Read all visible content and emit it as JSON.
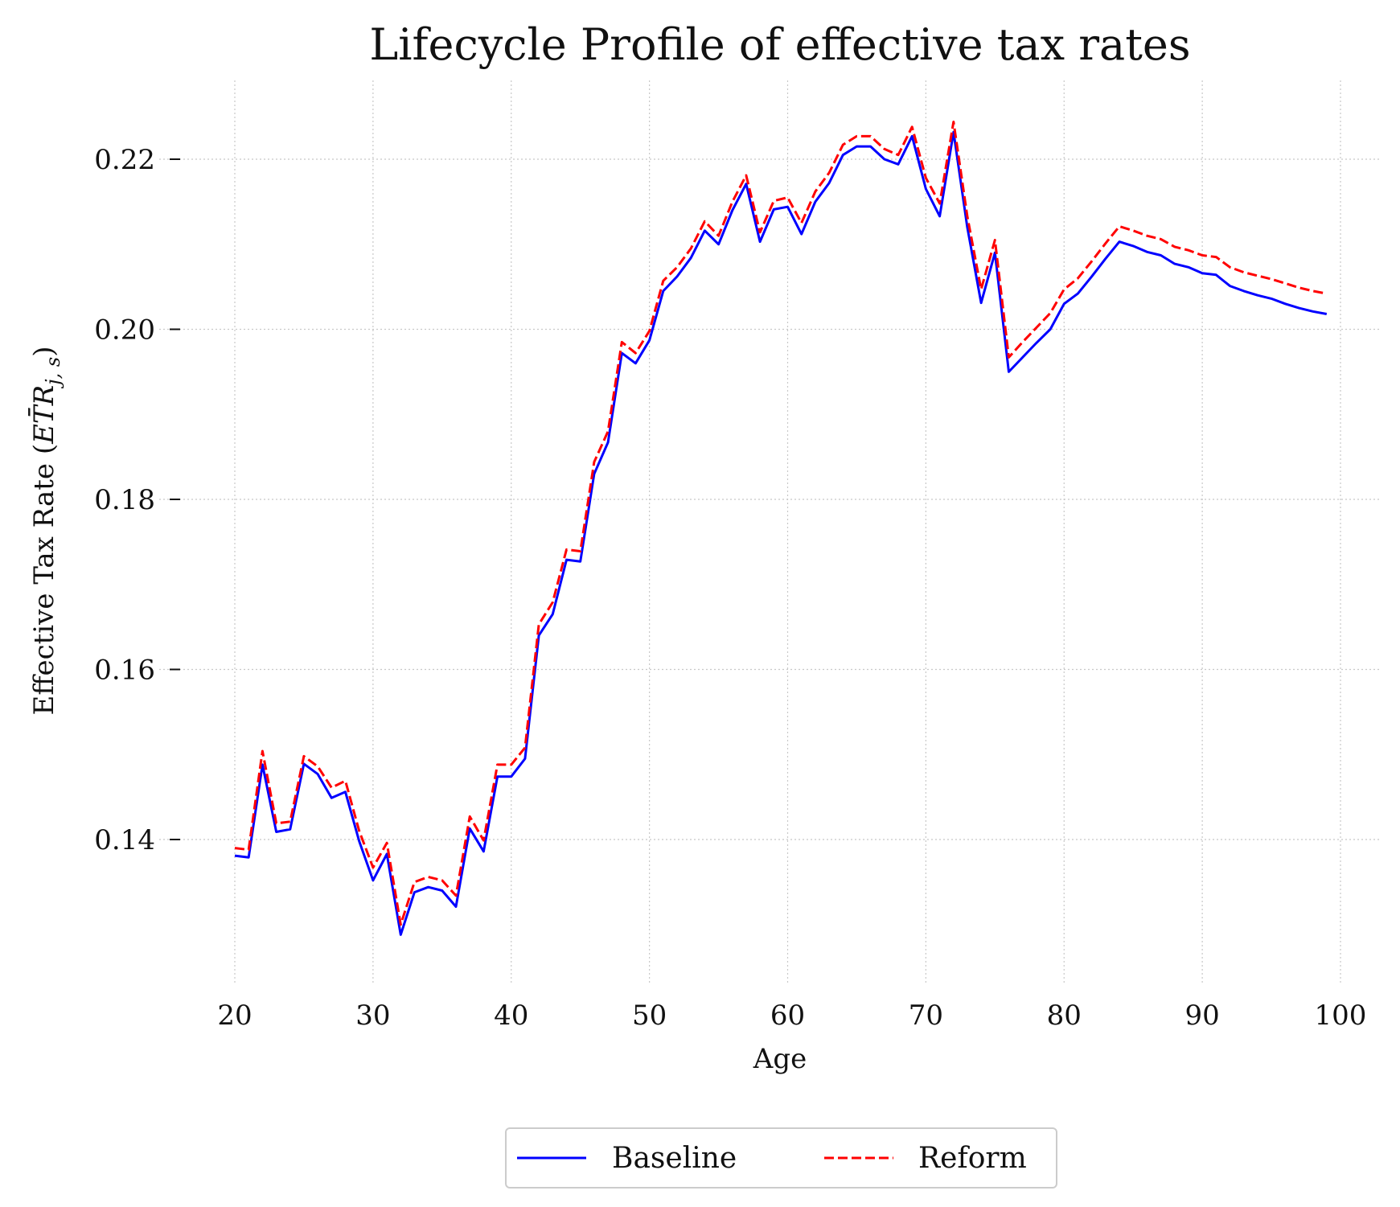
{
  "chart_data": {
    "type": "line",
    "title": "Lifecycle Profile of effective tax rates",
    "xlabel": "Age",
    "ylabel_prefix": "Effective Tax Rate (",
    "ylabel_math": "ET̄R",
    "ylabel_sub": "j, s",
    "ylabel_suffix": ")",
    "xlim": [
      20,
      100
    ],
    "ylim": [
      0.125,
      0.229
    ],
    "xticks": [
      20,
      30,
      40,
      50,
      60,
      70,
      80,
      90,
      100
    ],
    "xtick_labels": [
      "20",
      "30",
      "40",
      "50",
      "60",
      "70",
      "80",
      "90",
      "100"
    ],
    "yticks": [
      0.14,
      0.16,
      0.18,
      0.2,
      0.22
    ],
    "ytick_labels": [
      "0.14",
      "0.16",
      "0.18",
      "0.20",
      "0.22"
    ],
    "grid": true,
    "legend_position": "bottom-center",
    "x": [
      20,
      21,
      22,
      23,
      24,
      25,
      26,
      27,
      28,
      29,
      30,
      31,
      32,
      33,
      34,
      35,
      36,
      37,
      38,
      39,
      40,
      41,
      42,
      43,
      44,
      45,
      46,
      47,
      48,
      49,
      50,
      51,
      52,
      53,
      54,
      55,
      56,
      57,
      58,
      59,
      60,
      61,
      62,
      63,
      64,
      65,
      66,
      67,
      68,
      69,
      70,
      71,
      72,
      73,
      74,
      75,
      76,
      77,
      78,
      79,
      80,
      81,
      82,
      83,
      84,
      85,
      86,
      87,
      88,
      89,
      90,
      91,
      92,
      93,
      94,
      95,
      96,
      97,
      98,
      99
    ],
    "series": [
      {
        "name": "Baseline",
        "color": "#0000ff",
        "style": "solid",
        "values": [
          0.1381,
          0.1379,
          0.1488,
          0.1409,
          0.1412,
          0.1489,
          0.1477,
          0.1449,
          0.1456,
          0.1398,
          0.1352,
          0.1383,
          0.1288,
          0.1338,
          0.1344,
          0.134,
          0.1321,
          0.1413,
          0.1386,
          0.1474,
          0.1474,
          0.1495,
          0.164,
          0.1665,
          0.1729,
          0.1727,
          0.183,
          0.1867,
          0.1972,
          0.196,
          0.1987,
          0.2045,
          0.2062,
          0.2084,
          0.2116,
          0.21,
          0.214,
          0.2171,
          0.2103,
          0.2141,
          0.2144,
          0.2112,
          0.215,
          0.2172,
          0.2205,
          0.2215,
          0.2215,
          0.22,
          0.2194,
          0.2227,
          0.2165,
          0.2133,
          0.2232,
          0.212,
          0.2031,
          0.209,
          0.195,
          0.1967,
          0.1984,
          0.2,
          0.203,
          0.2042,
          0.2062,
          0.2083,
          0.2103,
          0.2098,
          0.2091,
          0.2087,
          0.2077,
          0.2073,
          0.2066,
          0.2064,
          0.2051,
          0.2045,
          0.204,
          0.2036,
          0.203,
          0.2025,
          0.2021,
          0.2018
        ]
      },
      {
        "name": "Reform",
        "color": "#ff0000",
        "style": "dashed",
        "values": [
          0.139,
          0.1388,
          0.1504,
          0.1419,
          0.1421,
          0.1498,
          0.1486,
          0.1461,
          0.1469,
          0.141,
          0.1367,
          0.1396,
          0.13,
          0.135,
          0.1356,
          0.1352,
          0.1334,
          0.1427,
          0.1399,
          0.1488,
          0.1488,
          0.1508,
          0.1653,
          0.1679,
          0.1741,
          0.1739,
          0.1844,
          0.188,
          0.1985,
          0.1972,
          0.1998,
          0.2057,
          0.2073,
          0.2095,
          0.2127,
          0.211,
          0.215,
          0.2181,
          0.2114,
          0.2151,
          0.2155,
          0.2125,
          0.2162,
          0.2184,
          0.2217,
          0.2227,
          0.2227,
          0.2212,
          0.2205,
          0.2238,
          0.2178,
          0.2148,
          0.2244,
          0.2133,
          0.2047,
          0.2105,
          0.1967,
          0.1985,
          0.2002,
          0.2019,
          0.2047,
          0.206,
          0.208,
          0.2101,
          0.2121,
          0.2116,
          0.211,
          0.2106,
          0.2097,
          0.2093,
          0.2087,
          0.2085,
          0.2073,
          0.2067,
          0.2063,
          0.2059,
          0.2054,
          0.2049,
          0.2045,
          0.2042
        ]
      }
    ]
  }
}
